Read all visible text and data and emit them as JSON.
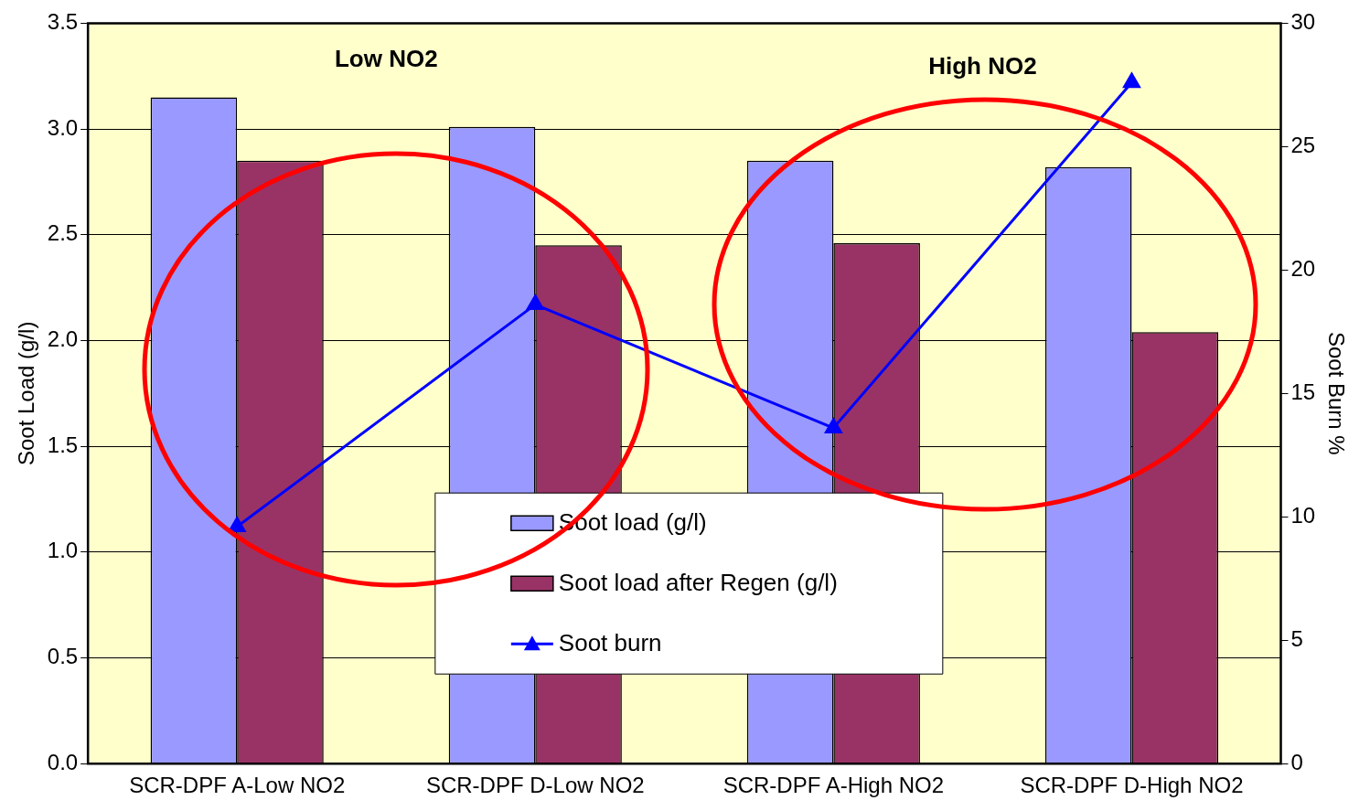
{
  "chart_data": {
    "type": "bar",
    "categories": [
      "SCR-DPF A-Low NO2",
      "SCR-DPF D-Low NO2",
      "SCR-DPF A-High NO2",
      "SCR-DPF D-High NO2"
    ],
    "series": [
      {
        "name": "Soot load (g/l)",
        "color": "#9999ff",
        "values": [
          3.15,
          3.01,
          2.85,
          2.82
        ]
      },
      {
        "name": "Soot load after Regen (g/l)",
        "color": "#993366",
        "values": [
          2.85,
          2.45,
          2.46,
          2.04
        ]
      },
      {
        "name": "Soot burn",
        "type": "line",
        "axis": "y2",
        "color": "#0000ff",
        "marker": "triangle",
        "values": [
          9.6,
          18.6,
          13.6,
          27.6
        ]
      }
    ],
    "ylabel": "Soot Load (g/l)",
    "y2label": "Soot Burn %",
    "ylim": [
      0,
      3.5
    ],
    "yticks": [
      {
        "value": 0,
        "label": "0.0"
      },
      {
        "value": 0.5,
        "label": "0.5"
      },
      {
        "value": 1,
        "label": "1.0"
      },
      {
        "value": 1.5,
        "label": "1.5"
      },
      {
        "value": 2,
        "label": "2.0"
      },
      {
        "value": 2.5,
        "label": "2.5"
      },
      {
        "value": 3,
        "label": "3.0"
      },
      {
        "value": 3.5,
        "label": "3.5"
      }
    ],
    "y2lim": [
      0,
      30
    ],
    "y2ticks": [
      0,
      5,
      10,
      15,
      20,
      25,
      30
    ],
    "annotations": [
      "Low NO2",
      "High NO2"
    ],
    "grid": "y",
    "legend": "bottom"
  }
}
